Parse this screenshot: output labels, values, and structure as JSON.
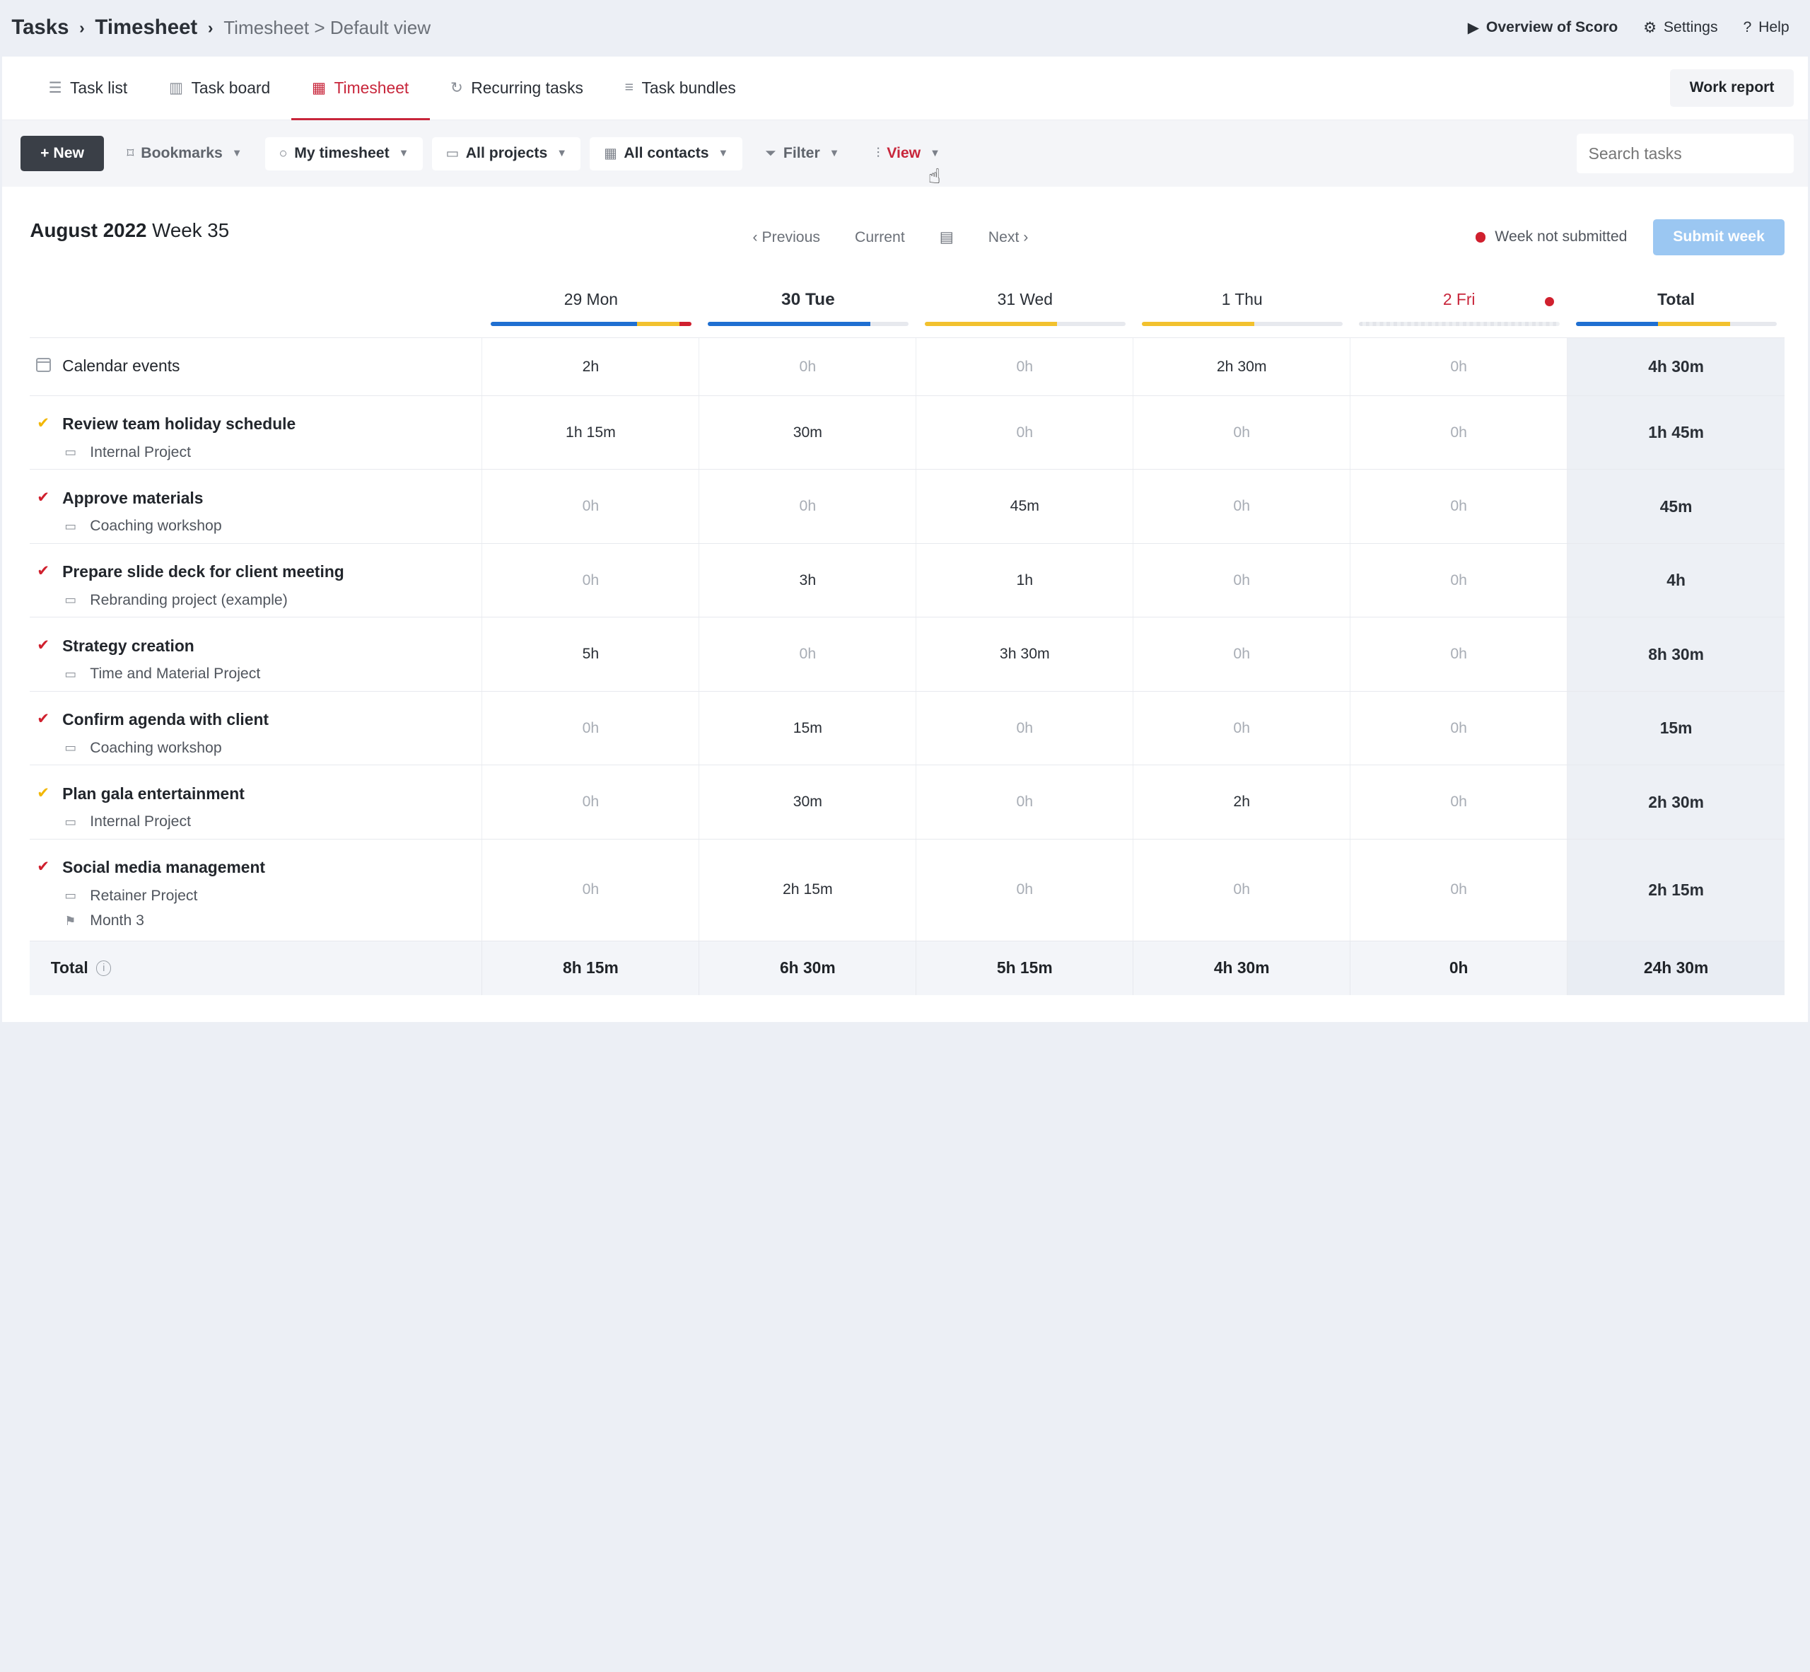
{
  "breadcrumb": {
    "root": "Tasks",
    "section": "Timesheet",
    "view": "Timesheet > Default view"
  },
  "top_links": {
    "overview": "Overview of Scoro",
    "settings": "Settings",
    "help": "Help"
  },
  "tabs": [
    {
      "label": "Task list",
      "icon": "list-icon",
      "active": false
    },
    {
      "label": "Task board",
      "icon": "board-icon",
      "active": false
    },
    {
      "label": "Timesheet",
      "icon": "grid-icon",
      "active": true
    },
    {
      "label": "Recurring tasks",
      "icon": "refresh-icon",
      "active": false
    },
    {
      "label": "Task bundles",
      "icon": "bundle-icon",
      "active": false
    }
  ],
  "work_report_label": "Work report",
  "toolbar": {
    "new_label": "+ New",
    "bookmarks": "Bookmarks",
    "my_timesheet": "My timesheet",
    "all_projects": "All projects",
    "all_contacts": "All contacts",
    "filter": "Filter",
    "view": "View",
    "search_placeholder": "Search tasks"
  },
  "header": {
    "month": "August 2022",
    "week": "Week 35",
    "previous": "Previous",
    "current": "Current",
    "next": "Next",
    "status": "Week not submitted",
    "submit": "Submit week"
  },
  "colors": {
    "accent": "#c8263b",
    "blue": "#1f6fd1",
    "yellow": "#f2c12e",
    "red": "#d0202e"
  },
  "days": [
    {
      "label": "29 Mon",
      "bar": [
        0.73,
        0.21,
        0.06
      ]
    },
    {
      "label": "30 Tue",
      "bar": [
        0.81,
        0,
        0
      ]
    },
    {
      "label": "31 Wed",
      "bar": [
        0,
        0.66,
        0
      ]
    },
    {
      "label": "1 Thu",
      "bar": [
        0,
        0.56,
        0
      ]
    },
    {
      "label": "2 Fri",
      "bar": [
        0,
        0,
        0
      ]
    }
  ],
  "total_label": "Total",
  "total_bar": [
    0.41,
    0.36,
    0
  ],
  "calendar_row": {
    "name": "Calendar events",
    "values": [
      "2h",
      "0h",
      "0h",
      "2h 30m",
      "0h"
    ],
    "total": "4h 30m"
  },
  "tasks": [
    {
      "name": "Review team holiday schedule",
      "check": "yellow",
      "project": "Internal Project",
      "values": [
        "1h 15m",
        "30m",
        "0h",
        "0h",
        "0h"
      ],
      "total": "1h 45m"
    },
    {
      "name": "Approve materials",
      "check": "red",
      "project": "Coaching workshop",
      "values": [
        "0h",
        "0h",
        "45m",
        "0h",
        "0h"
      ],
      "total": "45m"
    },
    {
      "name": "Prepare slide deck for client meeting",
      "check": "red",
      "project": "Rebranding project (example)",
      "values": [
        "0h",
        "3h",
        "1h",
        "0h",
        "0h"
      ],
      "total": "4h"
    },
    {
      "name": "Strategy creation",
      "check": "red",
      "project": "Time and Material Project",
      "values": [
        "5h",
        "0h",
        "3h 30m",
        "0h",
        "0h"
      ],
      "total": "8h 30m"
    },
    {
      "name": "Confirm agenda with client",
      "check": "red",
      "project": "Coaching workshop",
      "values": [
        "0h",
        "15m",
        "0h",
        "0h",
        "0h"
      ],
      "total": "15m"
    },
    {
      "name": "Plan gala entertainment",
      "check": "yellow",
      "project": "Internal Project",
      "values": [
        "0h",
        "30m",
        "0h",
        "2h",
        "0h"
      ],
      "total": "2h 30m"
    },
    {
      "name": "Social media management",
      "check": "red",
      "project": "Retainer Project",
      "milestone": "Month 3",
      "values": [
        "0h",
        "2h 15m",
        "0h",
        "0h",
        "0h"
      ],
      "total": "2h 15m"
    }
  ],
  "totals": {
    "label": "Total",
    "values": [
      "8h 15m",
      "6h 30m",
      "5h 15m",
      "4h 30m",
      "0h"
    ],
    "total": "24h 30m"
  }
}
